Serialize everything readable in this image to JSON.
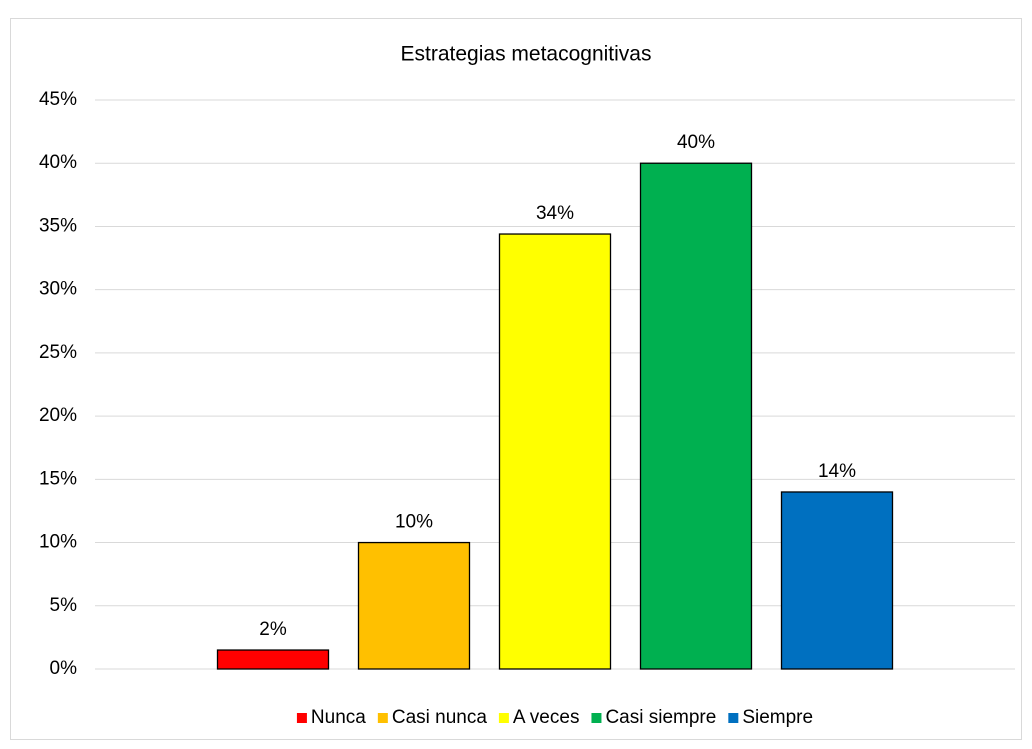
{
  "chart_data": {
    "type": "bar",
    "title": "Estrategias metacognitivas",
    "categories": [
      null
    ],
    "series": [
      {
        "name": "Nunca",
        "color": "#ff0000",
        "values": [
          1.5
        ],
        "value_labels": [
          "2%"
        ]
      },
      {
        "name": "Casi nunca",
        "color": "#ffc000",
        "values": [
          10
        ],
        "value_labels": [
          "10%"
        ]
      },
      {
        "name": "A veces",
        "color": "#ffff00",
        "values": [
          34.4
        ],
        "value_labels": [
          "34%"
        ]
      },
      {
        "name": "Casi siempre",
        "color": "#00b050",
        "values": [
          40
        ],
        "value_labels": [
          "40%"
        ]
      },
      {
        "name": "Siempre",
        "color": "#0070c0",
        "values": [
          14
        ],
        "value_labels": [
          "14%"
        ]
      }
    ],
    "ylim": [
      0,
      45
    ],
    "yticks": [
      {
        "value": 0,
        "label": "0%"
      },
      {
        "value": 5,
        "label": "5%"
      },
      {
        "value": 10,
        "label": "10%"
      },
      {
        "value": 15,
        "label": "15%"
      },
      {
        "value": 20,
        "label": "20%"
      },
      {
        "value": 25,
        "label": "25%"
      },
      {
        "value": 30,
        "label": "30%"
      },
      {
        "value": 35,
        "label": "35%"
      },
      {
        "value": 40,
        "label": "40%"
      },
      {
        "value": 45,
        "label": "45%"
      }
    ],
    "grid": true,
    "legend": "bottom"
  }
}
